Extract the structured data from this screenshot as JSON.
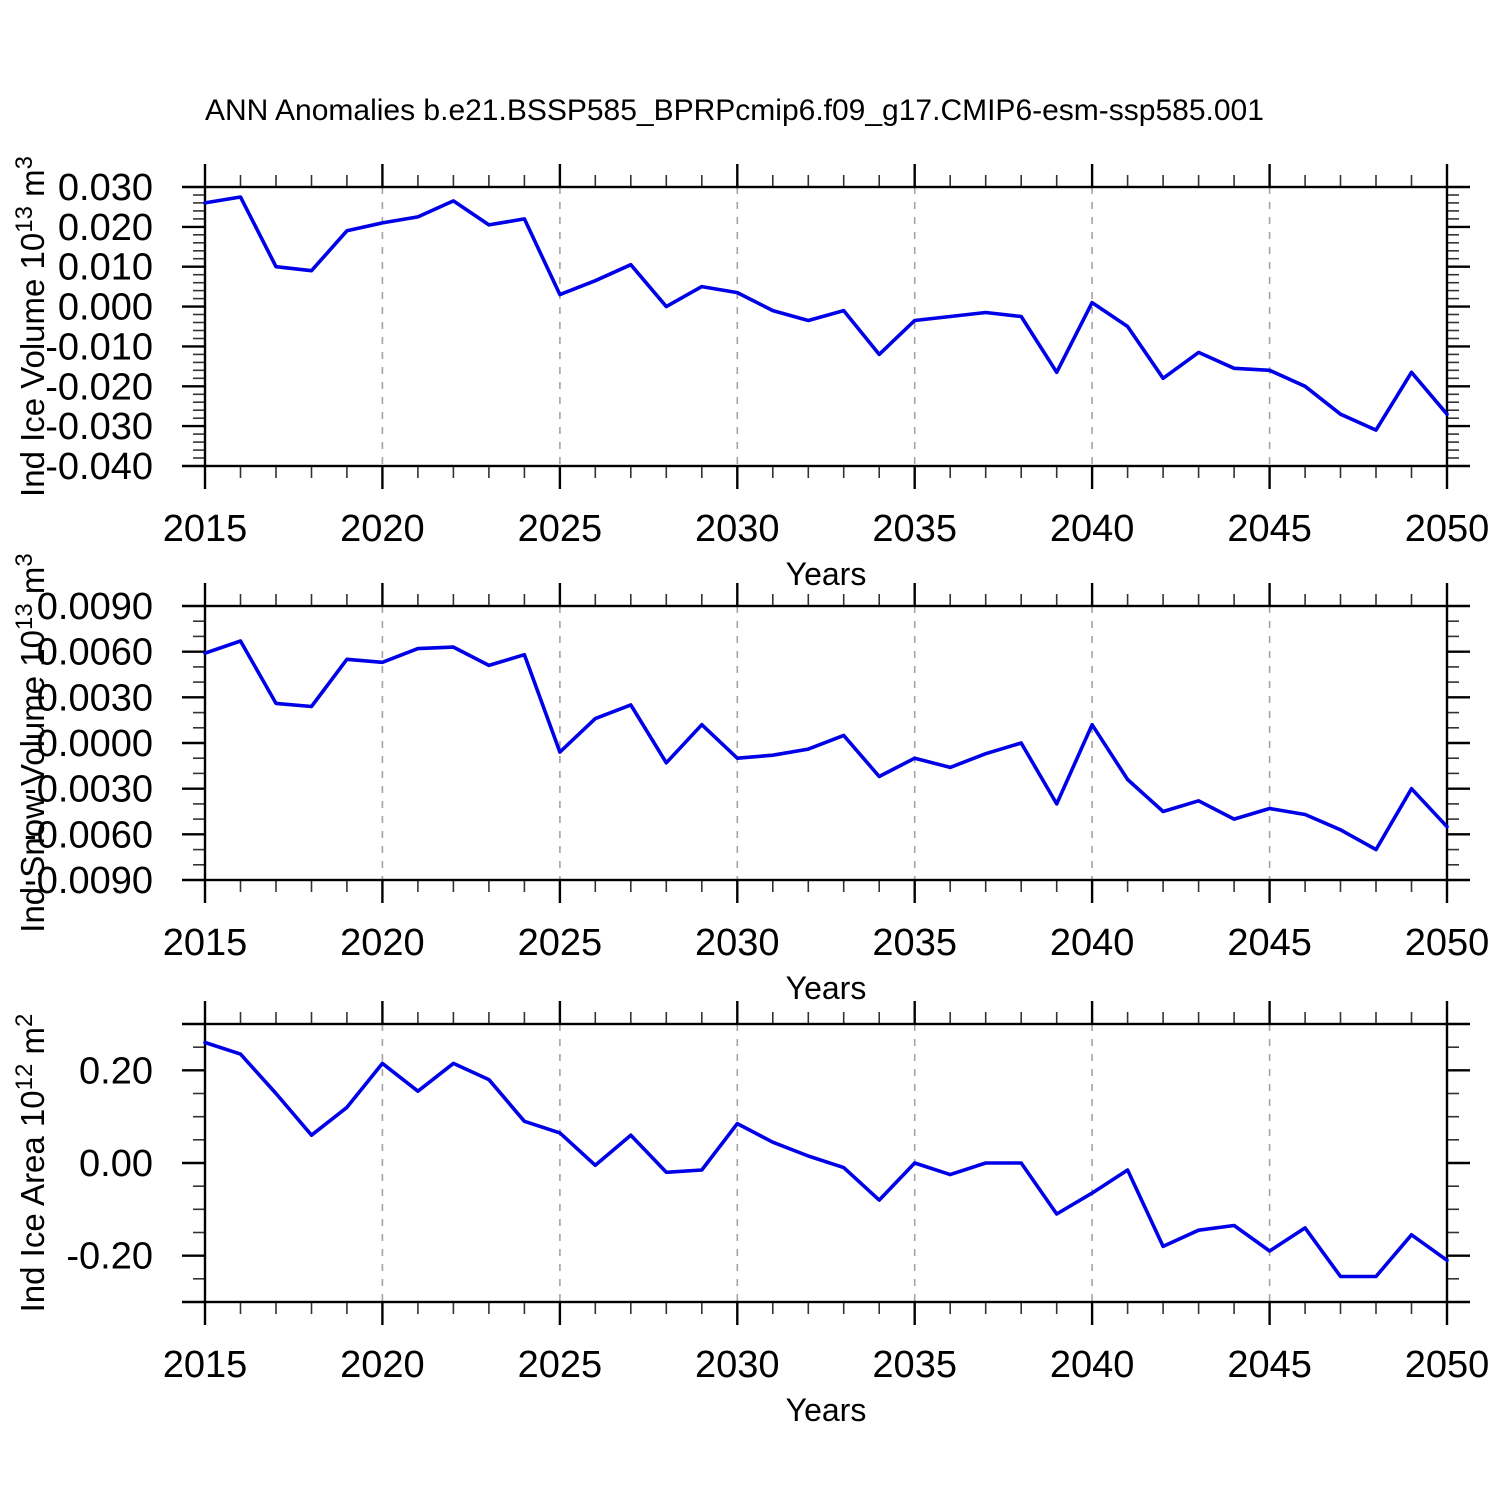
{
  "title": "ANN Anomalies b.e21.BSSP585_BPRPcmip6.f09_g17.CMIP6-esm-ssp585.001",
  "colors": {
    "line": "#0000e8",
    "grid": "#a3a3a3",
    "frame": "#000000",
    "minor_tick": "#333333"
  },
  "x_axis": {
    "label": "Years",
    "start": 2015,
    "end": 2050,
    "major_step": 5,
    "tick_labels": [
      "2015",
      "2020",
      "2025",
      "2030",
      "2035",
      "2040",
      "2045",
      "2050"
    ],
    "gridline_years": [
      2020,
      2025,
      2030,
      2035,
      2040,
      2045
    ]
  },
  "chart_data": [
    {
      "type": "line",
      "ylabel_parts": {
        "pre": "Ind Ice Volume 10",
        "sup1": "13",
        "mid": " m",
        "sup2": "3"
      },
      "ylim": [
        -0.04,
        0.03
      ],
      "yminor_step": 0.002,
      "ytick_values": [
        0.03,
        0.02,
        0.01,
        0.0,
        -0.01,
        -0.02,
        -0.03,
        -0.04
      ],
      "ytick_labels": [
        "0.030",
        "0.020",
        "0.010",
        "0.000",
        "-0.010",
        "-0.020",
        "-0.030",
        "-0.040"
      ],
      "x": [
        2015,
        2016,
        2017,
        2018,
        2019,
        2020,
        2021,
        2022,
        2023,
        2024,
        2025,
        2026,
        2027,
        2028,
        2029,
        2030,
        2031,
        2032,
        2033,
        2034,
        2035,
        2036,
        2037,
        2038,
        2039,
        2040,
        2041,
        2042,
        2043,
        2044,
        2045,
        2046,
        2047,
        2048,
        2049,
        2050
      ],
      "values": [
        0.026,
        0.0275,
        0.01,
        0.009,
        0.019,
        0.021,
        0.0225,
        0.0265,
        0.0205,
        0.022,
        0.003,
        0.0065,
        0.0105,
        0.0,
        0.005,
        0.0035,
        -0.001,
        -0.0035,
        -0.001,
        -0.012,
        -0.0035,
        -0.0025,
        -0.0015,
        -0.0025,
        -0.0165,
        0.001,
        -0.005,
        -0.018,
        -0.0115,
        -0.0155,
        -0.016,
        -0.02,
        -0.027,
        -0.031,
        -0.0165,
        -0.027
      ]
    },
    {
      "type": "line",
      "ylabel_parts": {
        "pre": "Ind Snow Volume 10",
        "sup1": "13",
        "mid": " m",
        "sup2": "3"
      },
      "ylim": [
        -0.009,
        0.009
      ],
      "yminor_step": 0.001,
      "ytick_values": [
        0.009,
        0.006,
        0.003,
        0.0,
        -0.003,
        -0.006,
        -0.009
      ],
      "ytick_labels": [
        "0.0090",
        "0.0060",
        "0.0030",
        "0.0000",
        "-0.0030",
        "-0.0060",
        "-0.0090"
      ],
      "x": [
        2015,
        2016,
        2017,
        2018,
        2019,
        2020,
        2021,
        2022,
        2023,
        2024,
        2025,
        2026,
        2027,
        2028,
        2029,
        2030,
        2031,
        2032,
        2033,
        2034,
        2035,
        2036,
        2037,
        2038,
        2039,
        2040,
        2041,
        2042,
        2043,
        2044,
        2045,
        2046,
        2047,
        2048,
        2049,
        2050
      ],
      "values": [
        0.0059,
        0.0067,
        0.0026,
        0.0024,
        0.0055,
        0.0053,
        0.0062,
        0.0063,
        0.0051,
        0.0058,
        -0.0006,
        0.0016,
        0.0025,
        -0.0013,
        0.0012,
        -0.001,
        -0.0008,
        -0.0004,
        0.0005,
        -0.0022,
        -0.001,
        -0.0016,
        -0.0007,
        0.0,
        -0.004,
        0.0012,
        -0.0024,
        -0.0045,
        -0.0038,
        -0.005,
        -0.0043,
        -0.0047,
        -0.0057,
        -0.007,
        -0.003,
        -0.0055
      ]
    },
    {
      "type": "line",
      "ylabel_parts": {
        "pre": "Ind Ice Area 10",
        "sup1": "12",
        "mid": " m",
        "sup2": "2"
      },
      "ylim": [
        -0.3,
        0.3
      ],
      "yminor_step": 0.05,
      "ytick_values": [
        0.2,
        0.0,
        -0.2
      ],
      "ytick_labels": [
        "0.20",
        "0.00",
        "-0.20"
      ],
      "x": [
        2015,
        2016,
        2017,
        2018,
        2019,
        2020,
        2021,
        2022,
        2023,
        2024,
        2025,
        2026,
        2027,
        2028,
        2029,
        2030,
        2031,
        2032,
        2033,
        2034,
        2035,
        2036,
        2037,
        2038,
        2039,
        2040,
        2041,
        2042,
        2043,
        2044,
        2045,
        2046,
        2047,
        2048,
        2049,
        2050
      ],
      "values": [
        0.26,
        0.235,
        0.15,
        0.06,
        0.12,
        0.215,
        0.155,
        0.215,
        0.18,
        0.09,
        0.065,
        -0.005,
        0.06,
        -0.02,
        -0.015,
        0.085,
        0.045,
        0.015,
        -0.01,
        -0.08,
        0.0,
        -0.025,
        0.0,
        0.0,
        -0.11,
        -0.065,
        -0.015,
        -0.18,
        -0.145,
        -0.135,
        -0.19,
        -0.14,
        -0.245,
        -0.245,
        -0.155,
        -0.21
      ]
    }
  ]
}
